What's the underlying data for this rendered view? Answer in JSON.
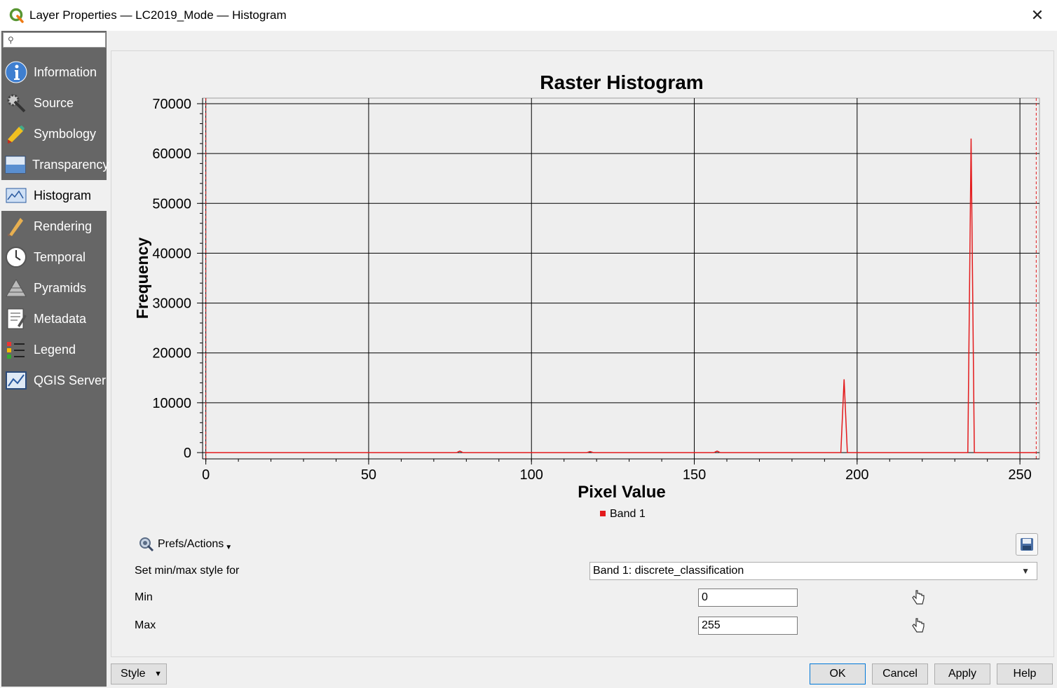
{
  "window": {
    "title": "Layer Properties — LC2019_Mode — Histogram"
  },
  "sidebar": {
    "search_placeholder": "",
    "items": [
      {
        "label": "Information",
        "icon": "information-icon"
      },
      {
        "label": "Source",
        "icon": "source-icon"
      },
      {
        "label": "Symbology",
        "icon": "symbology-icon"
      },
      {
        "label": "Transparency",
        "icon": "transparency-icon"
      },
      {
        "label": "Histogram",
        "icon": "histogram-icon",
        "active": true
      },
      {
        "label": "Rendering",
        "icon": "rendering-icon"
      },
      {
        "label": "Temporal",
        "icon": "temporal-icon"
      },
      {
        "label": "Pyramids",
        "icon": "pyramids-icon"
      },
      {
        "label": "Metadata",
        "icon": "metadata-icon"
      },
      {
        "label": "Legend",
        "icon": "legend-icon"
      },
      {
        "label": "QGIS Server",
        "icon": "qgis-server-icon"
      }
    ]
  },
  "chart_data": {
    "type": "line",
    "title": "Raster Histogram",
    "xlabel": "Pixel Value",
    "ylabel": "Frequency",
    "xlim": [
      -1,
      256
    ],
    "ylim": [
      0,
      70000
    ],
    "xticks": [
      0,
      50,
      100,
      150,
      200,
      250
    ],
    "yticks": [
      0,
      10000,
      20000,
      30000,
      40000,
      50000,
      60000,
      70000
    ],
    "grid": true,
    "legend_position": "bottom-center",
    "series": [
      {
        "name": "Band 1",
        "color": "#e31a1c",
        "x": [
          0,
          77,
          78,
          79,
          117,
          118,
          119,
          156,
          157,
          158,
          195,
          196,
          197,
          234,
          235,
          236,
          255
        ],
        "y": [
          0,
          0,
          300,
          0,
          0,
          200,
          0,
          0,
          300,
          0,
          0,
          14700,
          0,
          0,
          63000,
          0,
          0
        ]
      }
    ],
    "min_max_markers": [
      0,
      255
    ]
  },
  "prefs": {
    "label": "Prefs/Actions"
  },
  "minmax": {
    "set_label": "Set min/max style for",
    "band_value": "Band 1: discrete_classification",
    "min_label": "Min",
    "min_value": "0",
    "max_label": "Max",
    "max_value": "255"
  },
  "buttons": {
    "style": "Style",
    "ok": "OK",
    "cancel": "Cancel",
    "apply": "Apply",
    "help": "Help"
  }
}
